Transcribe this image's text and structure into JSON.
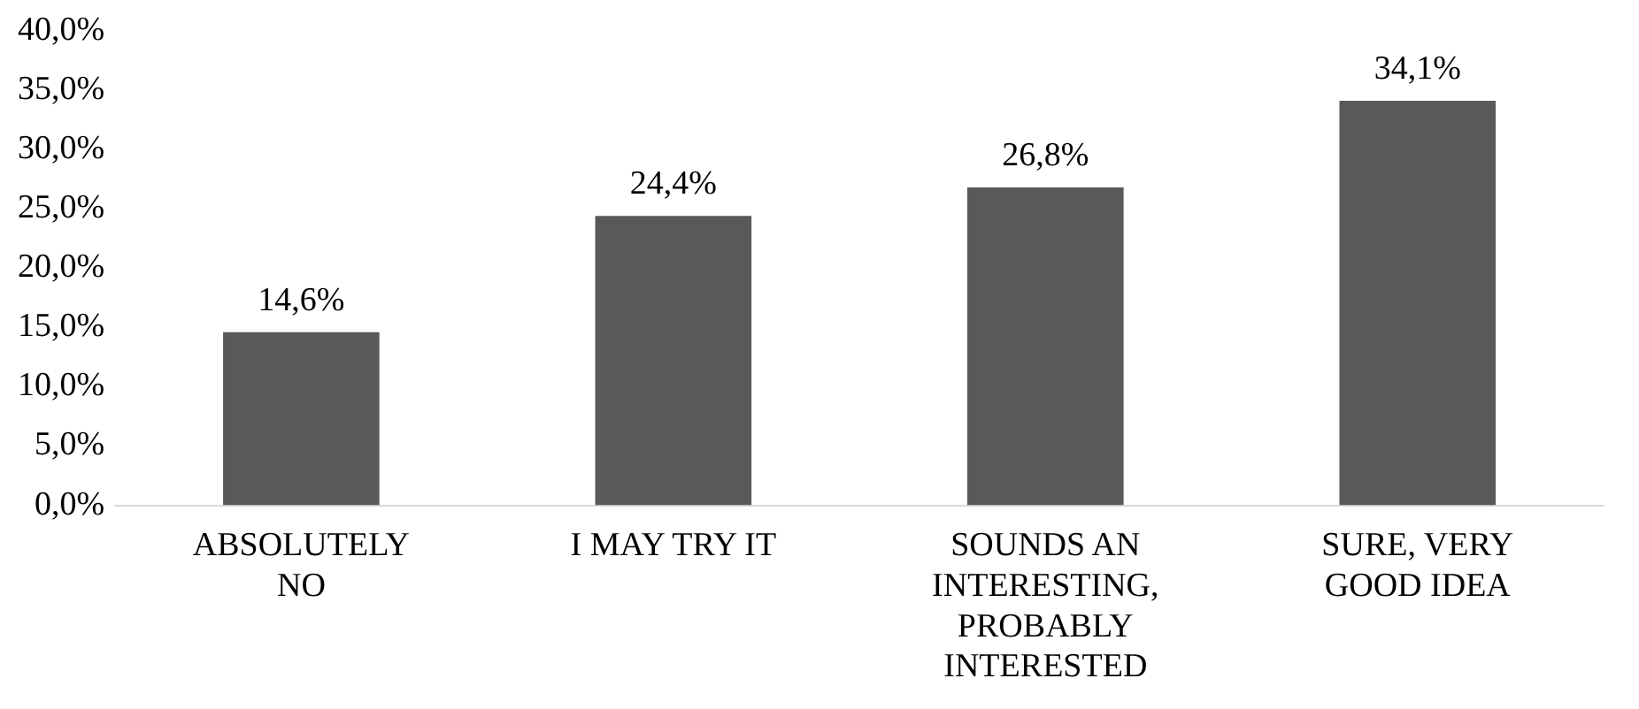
{
  "chart_data": {
    "type": "bar",
    "categories": [
      "ABSOLUTELY NO",
      "I MAY TRY IT",
      "SOUNDS AN INTERESTING, PROBABLY INTERESTED",
      "SURE, VERY GOOD IDEA"
    ],
    "values": [
      14.6,
      24.4,
      26.8,
      34.1
    ],
    "value_labels": [
      "14,6%",
      "24,4%",
      "26,8%",
      "34,1%"
    ],
    "color": "#595959",
    "ylim": [
      0,
      40
    ],
    "yticks": [
      {
        "value": 0,
        "label": "0,0%"
      },
      {
        "value": 5,
        "label": "5,0%"
      },
      {
        "value": 10,
        "label": "10,0%"
      },
      {
        "value": 15,
        "label": "15,0%"
      },
      {
        "value": 20,
        "label": "20,0%"
      },
      {
        "value": 25,
        "label": "25,0%"
      },
      {
        "value": 30,
        "label": "30,0%"
      },
      {
        "value": 35,
        "label": "35,0%"
      },
      {
        "value": 40,
        "label": "40,0%"
      }
    ],
    "grid": false,
    "legend": false
  }
}
